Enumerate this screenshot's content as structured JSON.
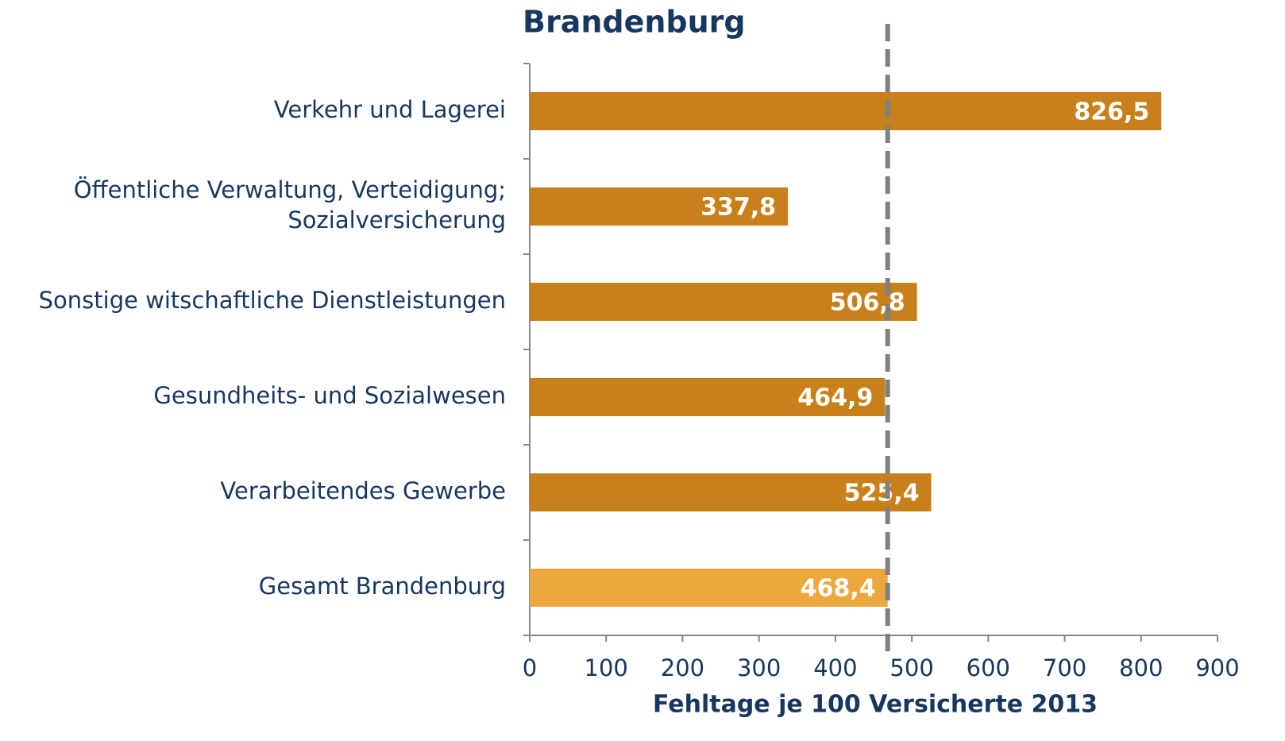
{
  "chart_data": {
    "type": "hbar",
    "title": "Brandenburg",
    "x_label": "Fehltage je 100 Versicherte 2013",
    "categories": [
      "Verkehr und Lagerei",
      [
        "Öffentliche Verwaltung, Verteidigung;",
        "Sozialversicherung"
      ],
      "Sonstige witschaftliche Dienstleistungen",
      "Gesundheits- und Sozialwesen",
      "Verarbeitendes Gewerbe",
      "Gesamt Brandenburg"
    ],
    "values": [
      826.5,
      337.8,
      506.8,
      464.9,
      525.4,
      468.4
    ],
    "value_labels": [
      "826,5",
      "337,8",
      "506,8",
      "464,9",
      "525,4",
      "468,4"
    ],
    "colors": [
      "#c8801a",
      "#c8801a",
      "#c8801a",
      "#c8801a",
      "#c8801a",
      "#eca73d"
    ],
    "reference_line": 468.4,
    "reference_color": "#808080",
    "xlim": [
      0,
      900
    ],
    "xticks": [
      0,
      100,
      200,
      300,
      400,
      500,
      600,
      700,
      800,
      900
    ]
  }
}
